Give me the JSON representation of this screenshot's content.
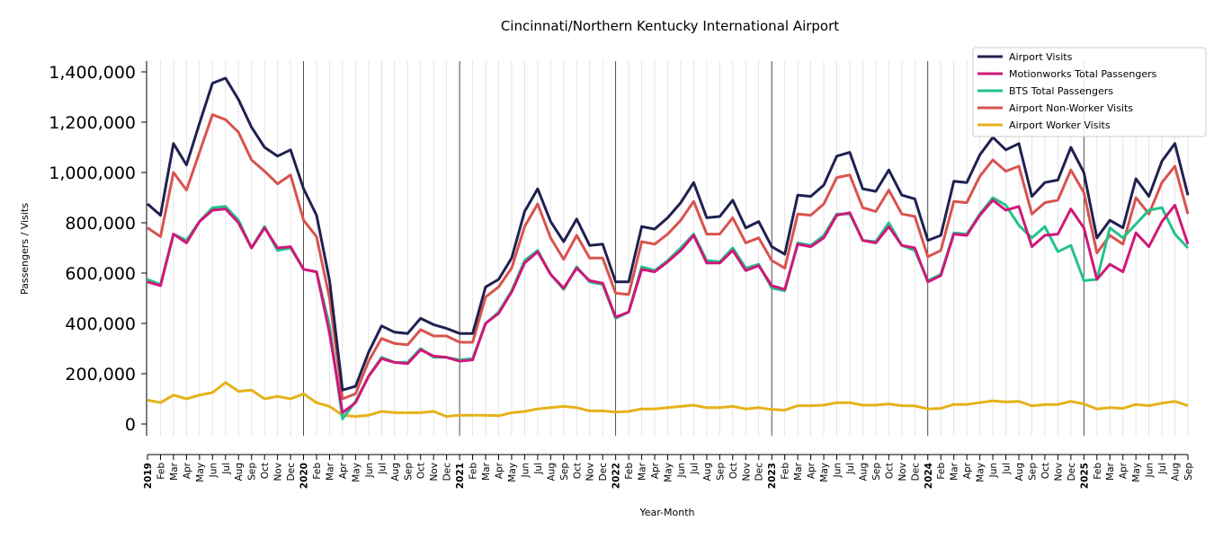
{
  "chart_data": {
    "type": "line",
    "title": "Cincinnati/Northern Kentucky International Airport",
    "xlabel": "Year-Month",
    "ylabel": "Passengers / Visits",
    "ylim": [
      -120000,
      1440000
    ],
    "yticks": [
      0,
      200000,
      400000,
      600000,
      800000,
      1000000,
      1200000,
      1400000
    ],
    "ytick_labels": [
      "0",
      "200,000",
      "400,000",
      "600,000",
      "800,000",
      "1,000,000",
      "1,200,000",
      "1,400,000"
    ],
    "grid": "vertical minor gridlines per month, darker line at each January",
    "legend_position": "top-right",
    "x": [
      "2019",
      "Feb",
      "Mar",
      "Apr",
      "May",
      "Jun",
      "Jul",
      "Aug",
      "Sep",
      "Oct",
      "Nov",
      "Dec",
      "2020",
      "Feb",
      "Mar",
      "Apr",
      "May",
      "Jun",
      "Jul",
      "Aug",
      "Sep",
      "Oct",
      "Nov",
      "Dec",
      "2021",
      "Feb",
      "Mar",
      "Apr",
      "May",
      "Jun",
      "Jul",
      "Aug",
      "Sep",
      "Oct",
      "Nov",
      "Dec",
      "2022",
      "Feb",
      "Mar",
      "Apr",
      "May",
      "Jun",
      "Jul",
      "Aug",
      "Sep",
      "Oct",
      "Nov",
      "Dec",
      "2023",
      "Feb",
      "Mar",
      "Apr",
      "May",
      "Jun",
      "Jul",
      "Aug",
      "Sep",
      "Oct",
      "Nov",
      "Dec",
      "2024",
      "Feb",
      "Mar",
      "Apr",
      "May",
      "Jun",
      "Jul",
      "Aug",
      "Sep",
      "Oct",
      "Nov",
      "Dec",
      "2025",
      "Feb",
      "Mar",
      "Apr",
      "May",
      "Jun",
      "Jul",
      "Aug",
      "Sep"
    ],
    "series": [
      {
        "name": "Airport Visits",
        "color": "#1f2150",
        "values": [
          875000,
          830000,
          1115000,
          1030000,
          1195000,
          1355000,
          1375000,
          1290000,
          1180000,
          1100000,
          1065000,
          1090000,
          935000,
          830000,
          570000,
          135000,
          150000,
          285000,
          390000,
          365000,
          360000,
          420000,
          395000,
          380000,
          360000,
          360000,
          545000,
          575000,
          660000,
          845000,
          935000,
          805000,
          725000,
          815000,
          710000,
          715000,
          565000,
          565000,
          785000,
          775000,
          820000,
          880000,
          960000,
          820000,
          825000,
          890000,
          780000,
          805000,
          705000,
          675000,
          910000,
          905000,
          950000,
          1065000,
          1080000,
          935000,
          925000,
          1010000,
          910000,
          895000,
          730000,
          750000,
          965000,
          960000,
          1070000,
          1140000,
          1090000,
          1115000,
          905000,
          960000,
          970000,
          1100000,
          1000000,
          740000,
          810000,
          780000,
          975000,
          905000,
          1045000,
          1115000,
          910000
        ]
      },
      {
        "name": "Motionworks Total Passengers",
        "color": "#d0177a",
        "values": [
          565000,
          550000,
          755000,
          720000,
          805000,
          850000,
          855000,
          800000,
          700000,
          780000,
          700000,
          705000,
          615000,
          605000,
          360000,
          45000,
          85000,
          190000,
          260000,
          245000,
          240000,
          295000,
          270000,
          265000,
          250000,
          255000,
          400000,
          440000,
          525000,
          640000,
          685000,
          595000,
          540000,
          620000,
          570000,
          560000,
          425000,
          445000,
          615000,
          605000,
          645000,
          690000,
          750000,
          640000,
          640000,
          690000,
          610000,
          630000,
          550000,
          535000,
          715000,
          705000,
          740000,
          830000,
          840000,
          730000,
          720000,
          785000,
          710000,
          700000,
          565000,
          590000,
          755000,
          750000,
          830000,
          890000,
          850000,
          865000,
          705000,
          750000,
          755000,
          855000,
          780000,
          575000,
          635000,
          605000,
          760000,
          705000,
          805000,
          870000,
          715000
        ]
      },
      {
        "name": "BTS Total Passengers",
        "color": "#22c38c",
        "values": [
          575000,
          555000,
          755000,
          730000,
          805000,
          860000,
          865000,
          810000,
          700000,
          785000,
          690000,
          700000,
          615000,
          605000,
          390000,
          20000,
          90000,
          190000,
          265000,
          245000,
          245000,
          300000,
          265000,
          265000,
          255000,
          260000,
          400000,
          445000,
          530000,
          650000,
          690000,
          595000,
          535000,
          625000,
          565000,
          555000,
          420000,
          445000,
          625000,
          610000,
          650000,
          700000,
          755000,
          650000,
          645000,
          700000,
          620000,
          635000,
          540000,
          530000,
          720000,
          710000,
          750000,
          835000,
          835000,
          730000,
          725000,
          800000,
          710000,
          690000,
          570000,
          595000,
          760000,
          755000,
          835000,
          900000,
          870000,
          790000,
          740000,
          785000,
          685000,
          710000,
          570000,
          575000,
          780000,
          740000,
          795000,
          850000,
          860000,
          755000,
          700000
        ]
      },
      {
        "name": "Airport Non-Worker Visits",
        "color": "#d9534f",
        "values": [
          780000,
          745000,
          1000000,
          930000,
          1080000,
          1230000,
          1210000,
          1160000,
          1050000,
          1005000,
          955000,
          990000,
          810000,
          745000,
          500000,
          100000,
          120000,
          250000,
          340000,
          320000,
          315000,
          375000,
          350000,
          350000,
          325000,
          325000,
          505000,
          545000,
          620000,
          785000,
          875000,
          740000,
          655000,
          750000,
          660000,
          660000,
          520000,
          515000,
          725000,
          715000,
          755000,
          810000,
          885000,
          755000,
          755000,
          820000,
          720000,
          740000,
          650000,
          620000,
          835000,
          830000,
          875000,
          980000,
          990000,
          860000,
          845000,
          930000,
          835000,
          825000,
          665000,
          690000,
          885000,
          880000,
          985000,
          1050000,
          1005000,
          1025000,
          835000,
          880000,
          890000,
          1010000,
          920000,
          680000,
          750000,
          715000,
          900000,
          835000,
          960000,
          1025000,
          835000
        ]
      },
      {
        "name": "Airport Worker Visits",
        "color": "#e5b21a",
        "values": [
          95000,
          85000,
          115000,
          100000,
          115000,
          125000,
          165000,
          130000,
          135000,
          100000,
          110000,
          100000,
          120000,
          85000,
          70000,
          35000,
          30000,
          35000,
          50000,
          45000,
          45000,
          45000,
          50000,
          30000,
          35000,
          35000,
          35000,
          33000,
          45000,
          50000,
          60000,
          65000,
          70000,
          65000,
          52000,
          52000,
          48000,
          50000,
          60000,
          60000,
          65000,
          70000,
          75000,
          65000,
          65000,
          70000,
          60000,
          65000,
          58000,
          55000,
          73000,
          73000,
          75000,
          85000,
          85000,
          75000,
          75000,
          80000,
          73000,
          72000,
          60000,
          62000,
          78000,
          78000,
          85000,
          92000,
          88000,
          90000,
          72000,
          77000,
          78000,
          90000,
          80000,
          60000,
          65000,
          62000,
          78000,
          73000,
          83000,
          90000,
          73000
        ]
      }
    ]
  }
}
